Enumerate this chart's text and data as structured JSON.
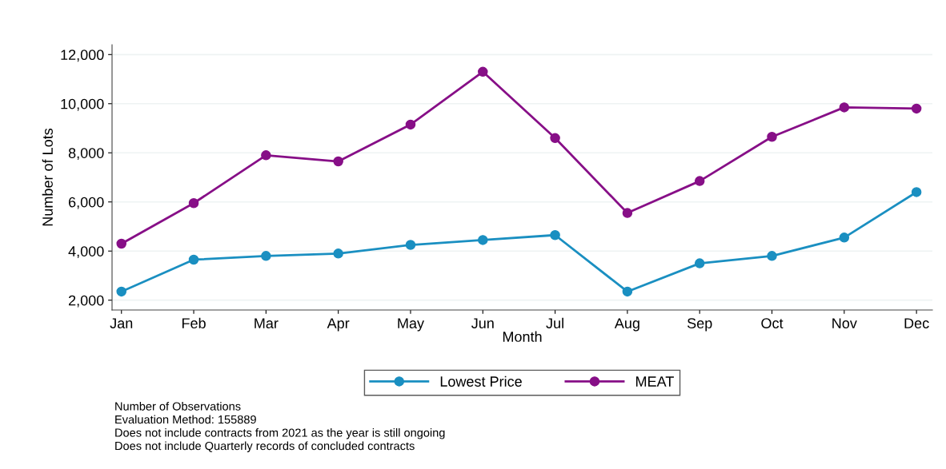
{
  "chart_data": {
    "type": "line",
    "xlabel": "Month",
    "ylabel": "Number of Lots",
    "categories": [
      "Jan",
      "Feb",
      "Mar",
      "Apr",
      "May",
      "Jun",
      "Jul",
      "Aug",
      "Sep",
      "Oct",
      "Nov",
      "Dec"
    ],
    "series": [
      {
        "name": "Lowest Price",
        "color": "#1a8fc1",
        "values": [
          2350,
          3650,
          3800,
          3900,
          4250,
          4450,
          4650,
          2350,
          3500,
          3800,
          4550,
          6400
        ]
      },
      {
        "name": "MEAT",
        "color": "#870f87",
        "values": [
          4300,
          5950,
          7900,
          7650,
          9150,
          11300,
          8600,
          5550,
          6850,
          8650,
          9850,
          9800
        ]
      }
    ],
    "ylim": [
      1600,
      12400
    ],
    "yticks": [
      {
        "value": 2000,
        "label": "2,000"
      },
      {
        "value": 4000,
        "label": "4,000"
      },
      {
        "value": 6000,
        "label": "6,000"
      },
      {
        "value": 8000,
        "label": "8,000"
      },
      {
        "value": 10000,
        "label": "10,000"
      },
      {
        "value": 12000,
        "label": "12,000"
      }
    ],
    "grid": "y",
    "legend": "bottom",
    "marker": "circle",
    "line_style": "solid",
    "annotations": [
      "Number of Observations",
      "Evaluation Method: 155889",
      "Does not include contracts from 2021 as the year is still ongoing",
      "Does not include Quarterly records of concluded contracts"
    ]
  }
}
